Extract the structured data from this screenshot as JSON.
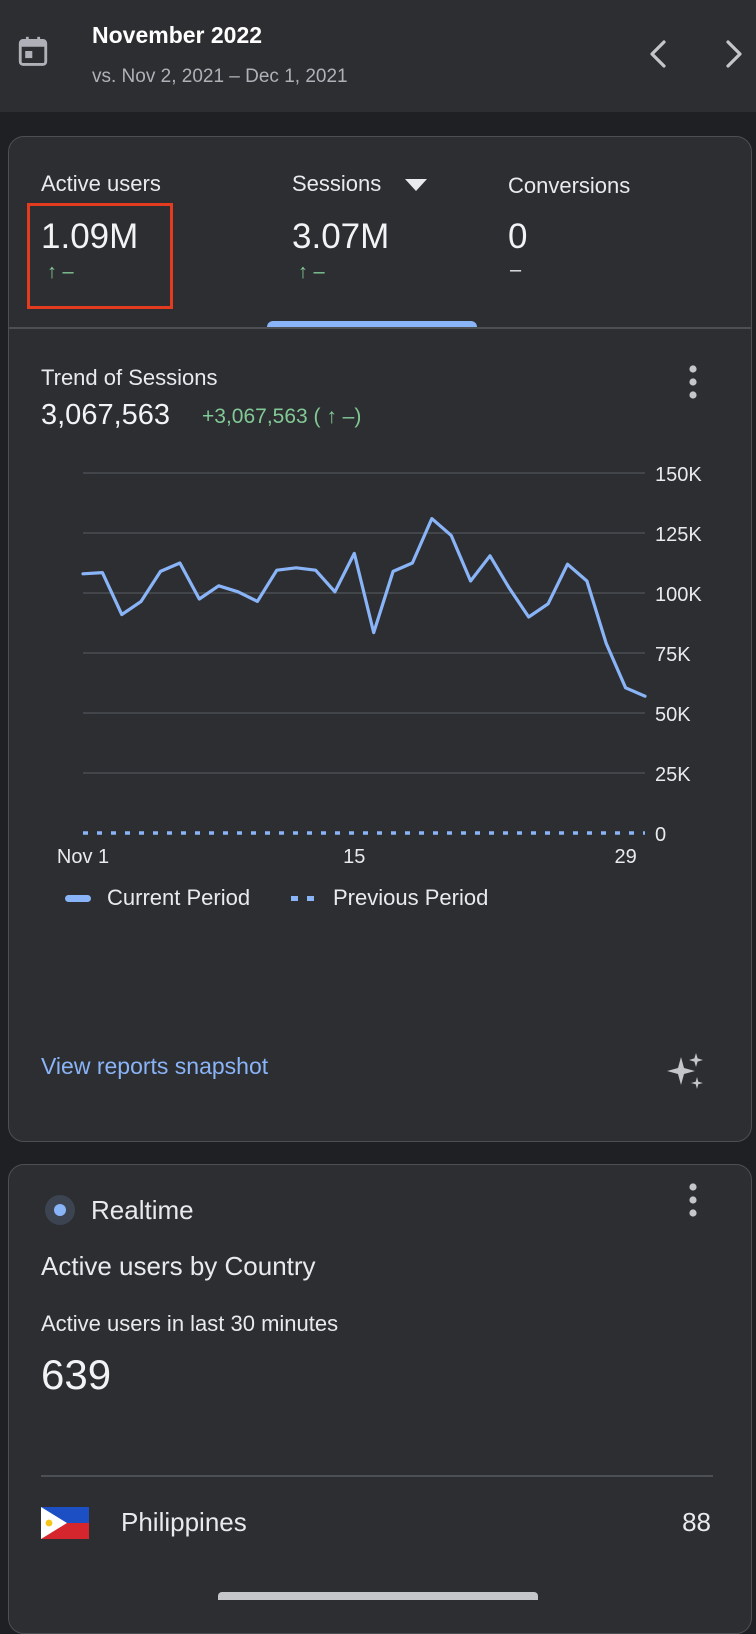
{
  "header": {
    "title": "November 2022",
    "comparison": "vs. Nov 2, 2021 – Dec 1, 2021",
    "icons": {
      "calendar": "calendar-icon",
      "prev": "chevron-left-icon",
      "next": "chevron-right-icon"
    }
  },
  "metrics": [
    {
      "label": "Active users",
      "value": "1.09M",
      "delta": "↑ –",
      "highlighted": true
    },
    {
      "label": "Sessions",
      "value": "3.07M",
      "delta": "↑ –",
      "selected": true,
      "has_dropdown": true
    },
    {
      "label": "Conversions",
      "value": "0",
      "delta": "–"
    }
  ],
  "trend": {
    "title": "Trend of Sessions",
    "total": "3,067,563",
    "change": "+3,067,563 ( ↑ –)"
  },
  "chart_data": {
    "type": "line",
    "x": [
      1,
      2,
      3,
      4,
      5,
      6,
      7,
      8,
      9,
      10,
      11,
      12,
      13,
      14,
      15,
      16,
      17,
      18,
      19,
      20,
      21,
      22,
      23,
      24,
      25,
      26,
      27,
      28,
      29,
      30
    ],
    "x_tick_labels": [
      {
        "x": 1,
        "label": "Nov 1"
      },
      {
        "x": 15,
        "label": "15"
      },
      {
        "x": 29,
        "label": "29"
      }
    ],
    "y_tick_labels": [
      "0",
      "25K",
      "50K",
      "75K",
      "100K",
      "125K",
      "150K"
    ],
    "ylim": [
      0,
      150000
    ],
    "grid": true,
    "series": [
      {
        "name": "Current Period",
        "style": "solid",
        "color": "#8ab4f8",
        "values": [
          108000,
          108500,
          91000,
          96500,
          109000,
          112500,
          97500,
          103000,
          100500,
          96500,
          109500,
          110500,
          109500,
          100500,
          116500,
          83500,
          109000,
          112500,
          131000,
          124000,
          105000,
          115500,
          102000,
          90000,
          95500,
          112000,
          105000,
          79000,
          60500,
          57000
        ]
      },
      {
        "name": "Previous Period",
        "style": "dashed",
        "color": "#8ab4f8",
        "values": [
          0,
          0,
          0,
          0,
          0,
          0,
          0,
          0,
          0,
          0,
          0,
          0,
          0,
          0,
          0,
          0,
          0,
          0,
          0,
          0,
          0,
          0,
          0,
          0,
          0,
          0,
          0,
          0,
          0,
          0
        ]
      }
    ]
  },
  "legend": {
    "current": "Current Period",
    "previous": "Previous Period"
  },
  "snapshot_link": "View reports snapshot",
  "realtime": {
    "label": "Realtime",
    "heading": "Active users by Country",
    "subheading": "Active users in last 30 minutes",
    "count": "639",
    "countries": [
      {
        "name": "Philippines",
        "value": "88"
      }
    ]
  }
}
